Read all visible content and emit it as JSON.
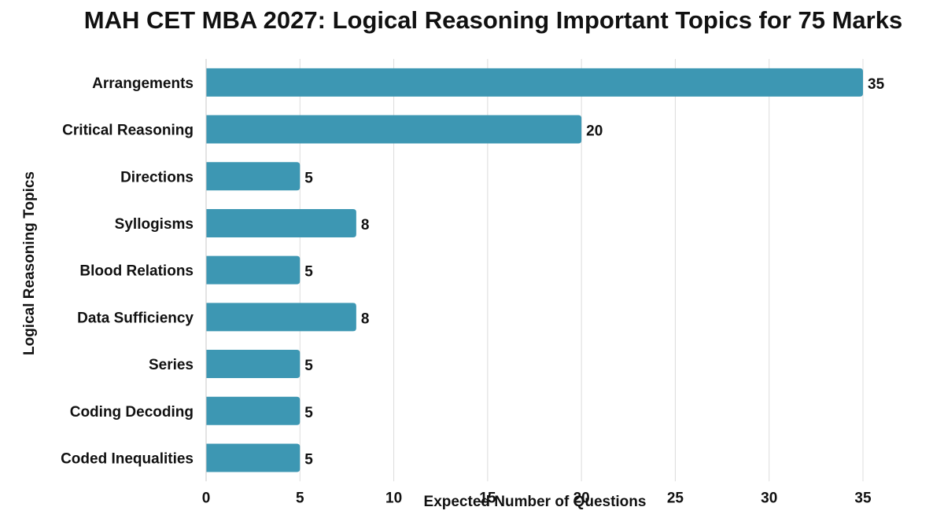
{
  "chart_data": {
    "type": "bar",
    "orientation": "horizontal",
    "title": "MAH CET MBA 2027: Logical Reasoning Important Topics for 75 Marks",
    "xlabel": "Expected Number of Questions",
    "ylabel": "Logical Reasoning Topics",
    "categories": [
      "Arrangements",
      "Critical Reasoning",
      "Directions",
      "Syllogisms",
      "Blood Relations",
      "Data Sufficiency",
      "Series",
      "Coding Decoding",
      "Coded Inequalities"
    ],
    "values": [
      35,
      20,
      5,
      8,
      5,
      8,
      5,
      5,
      5
    ],
    "xlim": [
      0,
      35
    ],
    "xticks": [
      0,
      5,
      10,
      15,
      20,
      25,
      30,
      35
    ],
    "grid": "vertical",
    "bar_color": "#3d97b3",
    "legend": "none"
  }
}
